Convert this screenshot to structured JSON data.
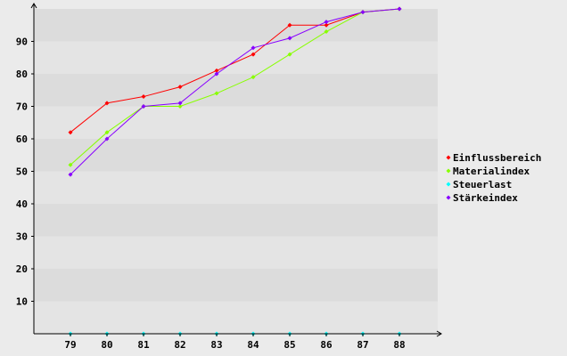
{
  "chart_data": {
    "type": "line",
    "title": "",
    "xlabel": "",
    "ylabel": "",
    "categories": [
      "79",
      "80",
      "81",
      "82",
      "83",
      "84",
      "85",
      "86",
      "87",
      "88"
    ],
    "ylim": [
      0,
      100
    ],
    "yticks": [
      10,
      20,
      30,
      40,
      50,
      60,
      70,
      80,
      90
    ],
    "grid": "horizontal alternating bands",
    "legend_position": "right",
    "series": [
      {
        "name": "Einflussbereich",
        "color": "#ff0000",
        "values": [
          62,
          71,
          73,
          76,
          81,
          86,
          95,
          95,
          99,
          100
        ]
      },
      {
        "name": "Materialindex",
        "color": "#88ff00",
        "values": [
          52,
          62,
          70,
          70,
          74,
          79,
          86,
          93,
          99,
          100
        ]
      },
      {
        "name": "Steuerlast",
        "color": "#00ffff",
        "values": [
          0,
          0,
          0,
          0,
          0,
          0,
          0,
          0,
          0,
          0
        ]
      },
      {
        "name": "Stärkeindex",
        "color": "#8800ff",
        "values": [
          49,
          60,
          70,
          71,
          80,
          88,
          91,
          96,
          99,
          100
        ]
      }
    ]
  }
}
